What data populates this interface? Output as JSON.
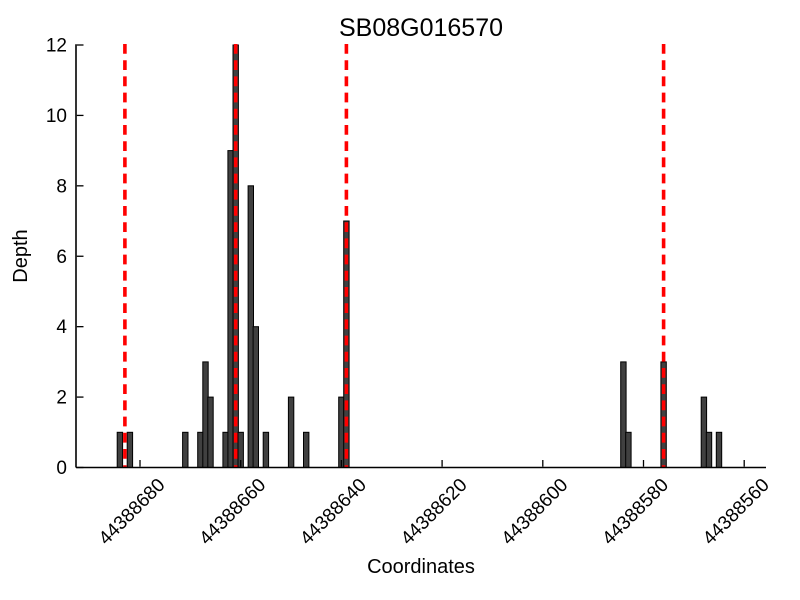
{
  "chart_data": {
    "type": "bar",
    "title": "SB08G016570",
    "xlabel": "Coordinates",
    "ylabel": "Depth",
    "x_axis": {
      "ticks": [
        44388680,
        44388660,
        44388640,
        44388620,
        44388600,
        44388580,
        44388560
      ],
      "reversed": true,
      "xlim": [
        44388693,
        44388556
      ],
      "tick_label_rotation_deg": 45
    },
    "y_axis": {
      "ticks": [
        0,
        2,
        4,
        6,
        8,
        10,
        12
      ],
      "ylim": [
        0,
        12
      ]
    },
    "grid": false,
    "legend": "none",
    "bars": [
      {
        "coordinate": 44388684,
        "depth": 1
      },
      {
        "coordinate": 44388682,
        "depth": 1
      },
      {
        "coordinate": 44388671,
        "depth": 1
      },
      {
        "coordinate": 44388668,
        "depth": 1
      },
      {
        "coordinate": 44388667,
        "depth": 3
      },
      {
        "coordinate": 44388666,
        "depth": 2
      },
      {
        "coordinate": 44388663,
        "depth": 1
      },
      {
        "coordinate": 44388662,
        "depth": 9
      },
      {
        "coordinate": 44388661,
        "depth": 12
      },
      {
        "coordinate": 44388660,
        "depth": 1
      },
      {
        "coordinate": 44388658,
        "depth": 8
      },
      {
        "coordinate": 44388657,
        "depth": 4
      },
      {
        "coordinate": 44388655,
        "depth": 1
      },
      {
        "coordinate": 44388650,
        "depth": 2
      },
      {
        "coordinate": 44388647,
        "depth": 1
      },
      {
        "coordinate": 44388640,
        "depth": 2
      },
      {
        "coordinate": 44388639,
        "depth": 7
      },
      {
        "coordinate": 44388584,
        "depth": 3
      },
      {
        "coordinate": 44388583,
        "depth": 1
      },
      {
        "coordinate": 44388576,
        "depth": 3
      },
      {
        "coordinate": 44388568,
        "depth": 2
      },
      {
        "coordinate": 44388567,
        "depth": 1
      },
      {
        "coordinate": 44388565,
        "depth": 1
      }
    ],
    "marker_lines": {
      "positions": [
        44388683,
        44388661,
        44388639,
        44388576
      ],
      "color": "#ff0000",
      "style": "dashed"
    },
    "colors": {
      "bar_fill": "#404040",
      "bar_edge": "#000000",
      "axis": "#000000",
      "background": "#ffffff"
    }
  }
}
